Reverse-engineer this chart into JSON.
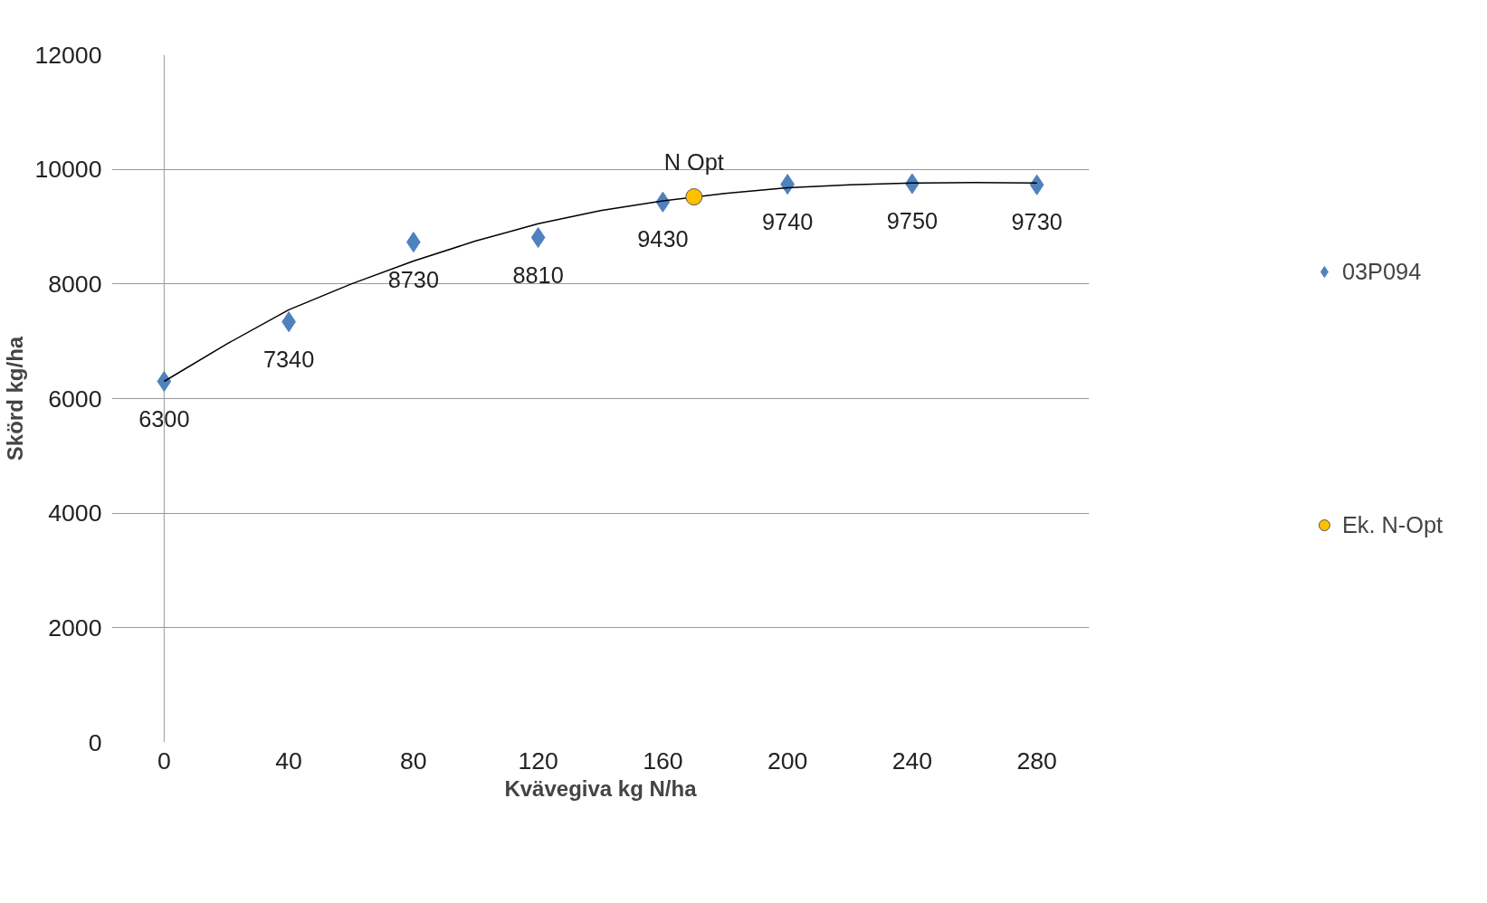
{
  "chart_data": {
    "type": "scatter",
    "xlabel": "Kvävegiva kg N/ha",
    "ylabel": "Skörd kg/ha",
    "xlim": [
      0,
      280
    ],
    "xticks": [
      0,
      40,
      80,
      120,
      160,
      200,
      240,
      280
    ],
    "ylim": [
      0,
      12000
    ],
    "yticks": [
      0,
      2000,
      4000,
      6000,
      8000,
      10000,
      12000
    ],
    "grid": "y",
    "legend": "right",
    "series": [
      {
        "name": "03P094",
        "marker": "diamond",
        "color": "#4f81bd",
        "x": [
          0,
          40,
          80,
          120,
          160,
          200,
          240,
          280
        ],
        "values": [
          6300,
          7340,
          8730,
          8810,
          9430,
          9740,
          9750,
          9730
        ],
        "value_labels": [
          "6300",
          "7340",
          "8730",
          "8810",
          "9430",
          "9740",
          "9750",
          "9730"
        ]
      },
      {
        "type": "line",
        "marker": "none",
        "color": "#000000",
        "x": [
          0,
          20,
          40,
          60,
          80,
          100,
          120,
          140,
          160,
          180,
          200,
          220,
          240,
          260,
          280
        ],
        "values": [
          6300,
          6950,
          7550,
          8000,
          8400,
          8750,
          9050,
          9280,
          9450,
          9580,
          9680,
          9730,
          9760,
          9770,
          9760
        ]
      },
      {
        "name": "Ek. N-Opt",
        "marker": "circle",
        "color": "#ffc000",
        "x": [
          170
        ],
        "values": [
          9520
        ]
      }
    ],
    "annotations": [
      {
        "text": "N Opt",
        "x": 170,
        "y": 9520
      }
    ]
  }
}
